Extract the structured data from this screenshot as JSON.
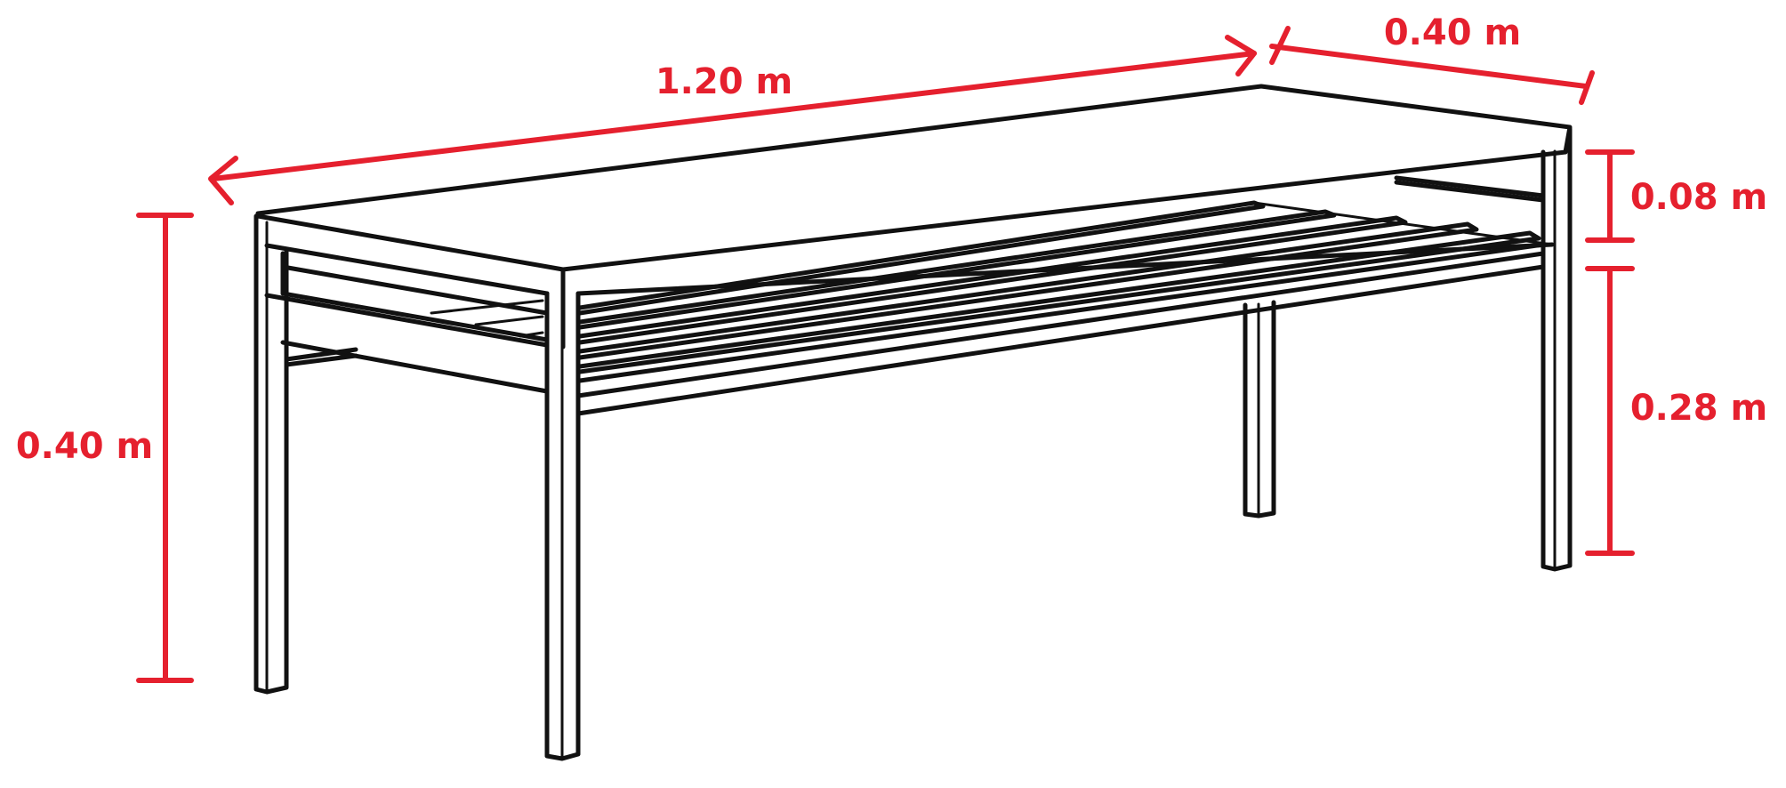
{
  "colors": {
    "dimension": "#e5202e",
    "line": "#111111",
    "background": "#ffffff"
  },
  "dimensions": {
    "length": "1.20 m",
    "depth": "0.40 m",
    "height": "0.40 m",
    "top_thickness": "0.08 m",
    "shelf_clearance": "0.28 m"
  }
}
